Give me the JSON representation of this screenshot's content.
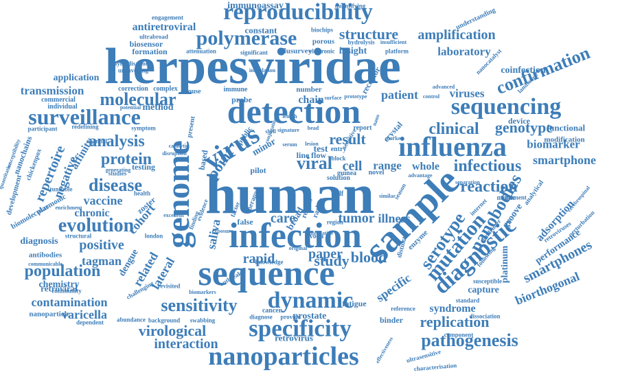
{
  "colors": {
    "word": "#3d7db8",
    "background": "#ffffff"
  },
  "words": [
    "herpesviridae",
    "human",
    "sequence",
    "detection",
    "infection",
    "sample",
    "genome",
    "nanoparticles",
    "specificity",
    "influenza",
    "reproducibility",
    "polymerase",
    "surveillance",
    "sequencing",
    "confirmation",
    "diagnostic",
    "dynamic",
    "sensitivity",
    "mutation",
    "virus",
    "serotype",
    "nanobodies",
    "pathogenesis",
    "replication",
    "virological",
    "evolution",
    "disease",
    "molecular",
    "clinical",
    "infectious",
    "amplification",
    "structure",
    "genotype",
    "protein",
    "reaction",
    "analysis",
    "smartphone",
    "smartphones",
    "population",
    "contamination",
    "interaction",
    "paper",
    "study",
    "blood",
    "positive",
    "varicella",
    "related",
    "dengue",
    "biomarker",
    "biorthogonal",
    "repertoire",
    "negative",
    "affinity",
    "cohort",
    "tagman",
    "chronic",
    "vaccine",
    "antiretroviral",
    "laboratory",
    "patient",
    "viruses",
    "transmission",
    "range",
    "whole",
    "result",
    "cell",
    "viral",
    "point",
    "point-of-care",
    "care",
    "tumor",
    "illness",
    "rapid",
    "retroviral",
    "chemistry",
    "diagnosis",
    "immunoassay",
    "biosensor",
    "formation",
    "application",
    "constant",
    "insight",
    "receptor",
    "specific",
    "prostate",
    "fatigue",
    "syndrome",
    "binder",
    "retrovirus",
    "capture",
    "platinum",
    "adsorption",
    "performance",
    "groove",
    "coinfection",
    "functional",
    "modification",
    "device",
    "crystal",
    "lateral",
    "saliva",
    "false",
    "method",
    "probe",
    "chain",
    "immune",
    "test",
    "line",
    "flow",
    "based",
    "minor",
    "present",
    "public",
    "broad",
    "pilot",
    "mouse",
    "complex",
    "correction",
    "commercial",
    "individual",
    "participant",
    "nanochains",
    "chickenpox",
    "plasmonic",
    "biomolecular",
    "development",
    "nanoparticle",
    "antibodies",
    "community",
    "dependent",
    "abundance",
    "background",
    "swabbing",
    "diagnose",
    "provide",
    "reference",
    "component",
    "dissociation",
    "standard",
    "susceptible",
    "retroviruses",
    "perturbation",
    "analytical",
    "cerebrospinal",
    "landscape",
    "nanocatalyst",
    "understanding",
    "engagement",
    "quantifying",
    "biochips",
    "ultrabroad",
    "hybridisation",
    "unravelling",
    "attenuation",
    "significant",
    "flusurvey",
    "electronic",
    "porous",
    "hydrolysis",
    "platform",
    "insufficient",
    "number",
    "surface",
    "entry",
    "guinea",
    "length",
    "redefining",
    "channel",
    "generating",
    "testing",
    "studies",
    "health",
    "zoster",
    "london",
    "structural",
    "challenging",
    "communicable",
    "revisited",
    "biomarkers",
    "outbreak",
    "knowledge",
    "cancer",
    "original",
    "voka",
    "alternative",
    "characterisation",
    "ultrasensitive",
    "effectiveness",
    "treatment",
    "mimic",
    "enzyme",
    "internet",
    "advanced",
    "control",
    "season",
    "novel",
    "advantage",
    "separation",
    "following",
    "dendrimer",
    "self",
    "region",
    "rashes",
    "therapy",
    "factor",
    "review",
    "finding",
    "exposure",
    "evidence",
    "excellent",
    "disruption",
    "catalytic",
    "symptom",
    "potential",
    "tuneable",
    "enrichment",
    "quantitative",
    "susceptibility",
    "conjugation",
    "signature",
    "bead",
    "prototype",
    "inoculation",
    "nano",
    "report",
    "distinct",
    "shell",
    "serum",
    "marker",
    "similar",
    "sensitive",
    "block",
    "lesion",
    "video",
    "solution",
    "core"
  ]
}
